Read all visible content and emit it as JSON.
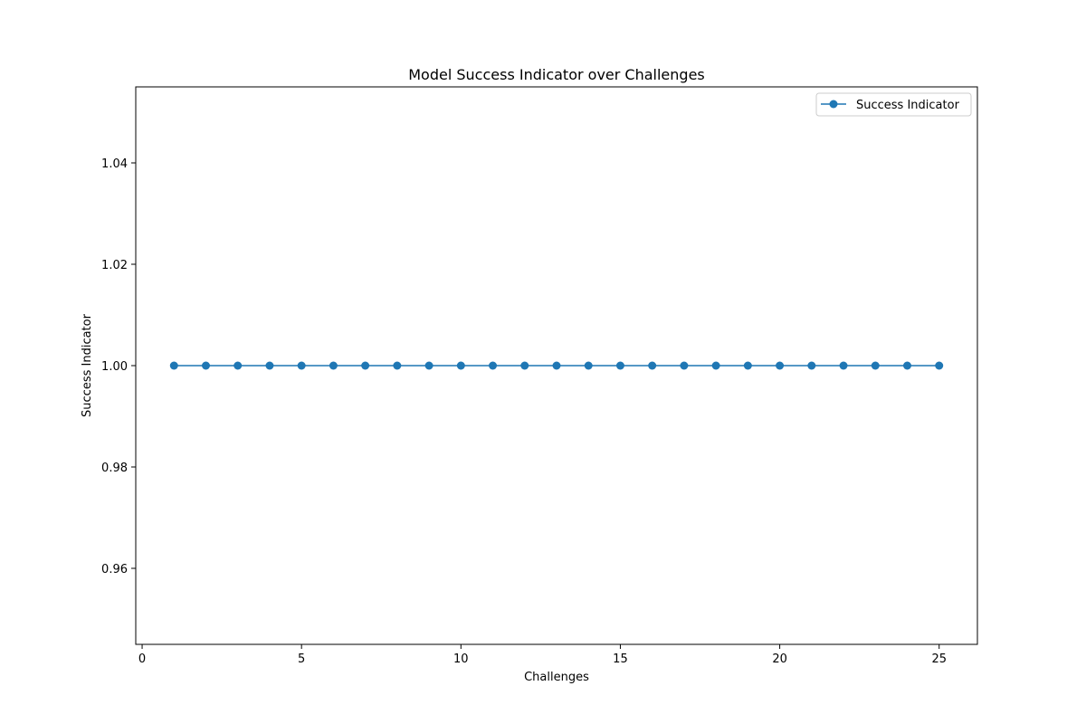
{
  "chart_data": {
    "type": "line",
    "title": "Model Success Indicator over Challenges",
    "xlabel": "Challenges",
    "ylabel": "Success Indicator",
    "xlim": [
      -0.2,
      26.2
    ],
    "ylim": [
      0.945,
      1.055
    ],
    "x_ticks": [
      0,
      5,
      10,
      15,
      20,
      25
    ],
    "y_ticks": [
      0.96,
      0.98,
      1.0,
      1.02,
      1.04
    ],
    "grid": false,
    "legend_position": "upper right",
    "series": [
      {
        "name": "Success Indicator",
        "color": "#1f77b4",
        "marker": "circle",
        "x": [
          1,
          2,
          3,
          4,
          5,
          6,
          7,
          8,
          9,
          10,
          11,
          12,
          13,
          14,
          15,
          16,
          17,
          18,
          19,
          20,
          21,
          22,
          23,
          24,
          25
        ],
        "y": [
          1,
          1,
          1,
          1,
          1,
          1,
          1,
          1,
          1,
          1,
          1,
          1,
          1,
          1,
          1,
          1,
          1,
          1,
          1,
          1,
          1,
          1,
          1,
          1,
          1
        ]
      }
    ]
  }
}
